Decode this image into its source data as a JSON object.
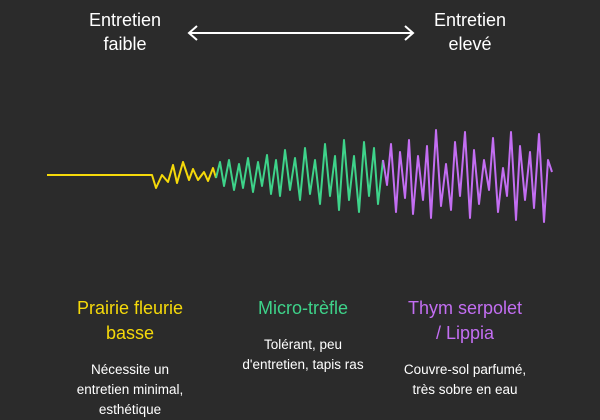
{
  "scale": {
    "low_label": "Entretien\nfaible",
    "high_label": "Entretien\nelevé"
  },
  "categories": [
    {
      "title": "Prairie fleurie\nbasse",
      "description": "Nécessite un\nentretien minimal,\nesthétique",
      "color": "#f5d90a"
    },
    {
      "title": "Micro-trèfle",
      "description": "Tolérant, peu\nd'entretien, tapis ras",
      "color": "#3ed38a"
    },
    {
      "title": "Thym serpolet\n/ Lippia",
      "description": "Couvre-sol parfumé,\ntrès sobre en eau",
      "color": "#c36ef2"
    }
  ],
  "colors": {
    "background": "#2b2b2b",
    "arrow": "#ffffff"
  }
}
